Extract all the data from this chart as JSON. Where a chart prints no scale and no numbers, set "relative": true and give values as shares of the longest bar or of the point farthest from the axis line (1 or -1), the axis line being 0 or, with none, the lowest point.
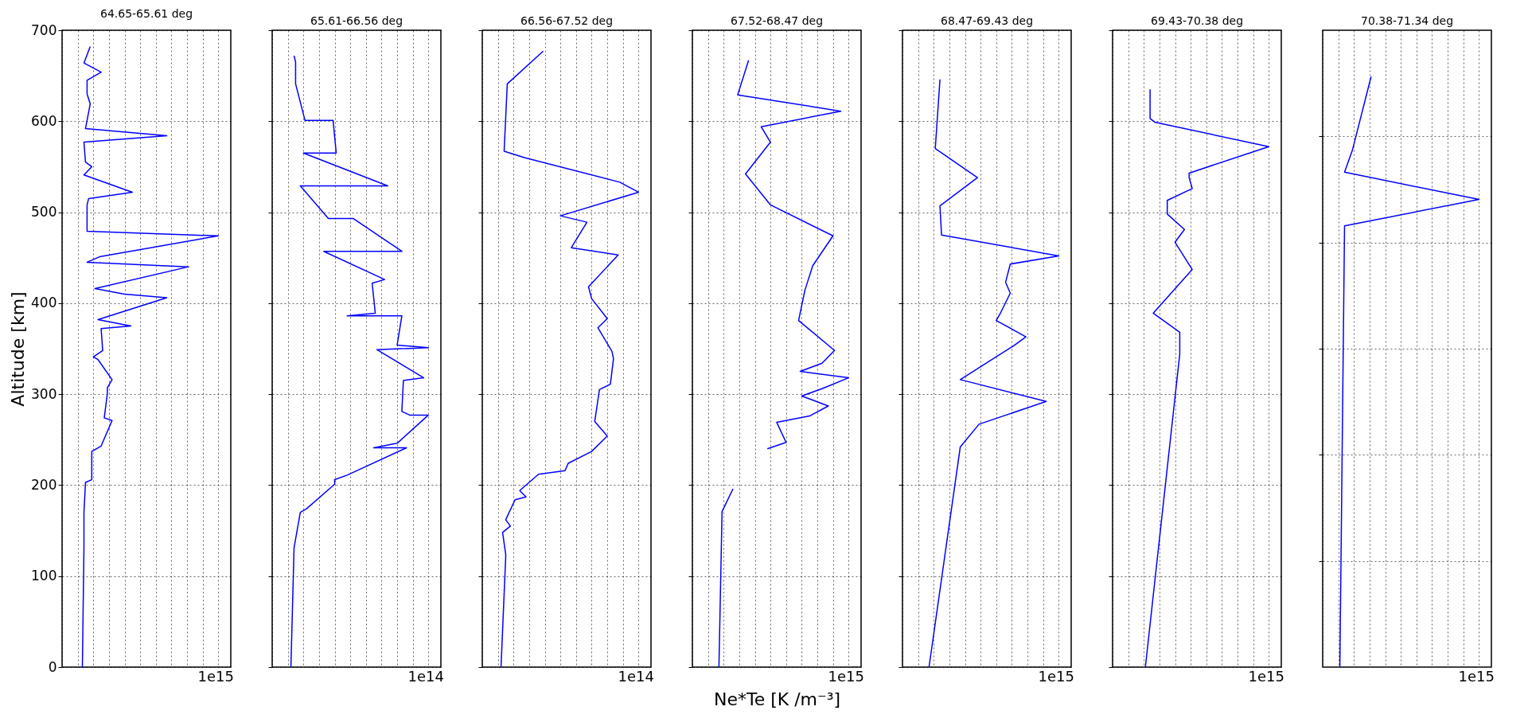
{
  "chart_data": [
    {
      "type": "line",
      "title": "64.65-65.61 deg",
      "ylabel": "Altitude [km]",
      "orientation": "horizontal",
      "relative": true,
      "ylim": [
        0,
        700
      ],
      "yticks": [
        0,
        100,
        200,
        300,
        400,
        500,
        600,
        700
      ],
      "grid": true,
      "tick_labels": "y",
      "line_style": "solid",
      "annotations": [
        "1e15"
      ],
      "series": [
        {
          "color": "#0000ff",
          "x": [
            682,
            664,
            654,
            645,
            630,
            619,
            592,
            584,
            577,
            555,
            550,
            541,
            522,
            515,
            508,
            479,
            474,
            451,
            445,
            440,
            416,
            410,
            406,
            382,
            375,
            372,
            348,
            341,
            338,
            316,
            307,
            301,
            274,
            271,
            243,
            237,
            206,
            203,
            170,
            131,
            0
          ],
          "values": [
            0.18,
            0.14,
            0.25,
            0.16,
            0.16,
            0.18,
            0.15,
            0.67,
            0.14,
            0.15,
            0.19,
            0.14,
            0.45,
            0.17,
            0.16,
            0.16,
            1.0,
            0.24,
            0.16,
            0.81,
            0.21,
            0.4,
            0.67,
            0.23,
            0.44,
            0.25,
            0.26,
            0.2,
            0.23,
            0.32,
            0.29,
            0.29,
            0.27,
            0.32,
            0.25,
            0.19,
            0.19,
            0.15,
            0.14,
            0.14,
            0.13
          ]
        }
      ]
    },
    {
      "type": "line",
      "title": "65.61-66.56 deg",
      "orientation": "horizontal",
      "relative": true,
      "ylim": [
        0,
        700
      ],
      "yticks": [
        0,
        100,
        200,
        300,
        400,
        500,
        600,
        700
      ],
      "grid": true,
      "tick_labels": false,
      "line_style": "solid",
      "annotations": [
        "1e14"
      ],
      "series": [
        {
          "color": "#0000ff",
          "x": [
            672,
            665,
            641,
            601,
            601,
            565,
            565,
            529,
            529,
            493,
            493,
            457,
            457,
            426,
            422,
            389,
            386,
            386,
            354,
            351,
            349,
            318,
            315,
            281,
            277,
            277,
            246,
            241,
            241,
            211,
            206,
            201,
            174,
            170,
            131,
            0
          ],
          "values": [
            0.14,
            0.15,
            0.15,
            0.21,
            0.39,
            0.41,
            0.2,
            0.74,
            0.18,
            0.36,
            0.52,
            0.83,
            0.33,
            0.72,
            0.64,
            0.66,
            0.48,
            0.83,
            0.8,
            1.0,
            0.67,
            0.97,
            0.84,
            0.83,
            0.88,
            1.0,
            0.8,
            0.65,
            0.86,
            0.48,
            0.4,
            0.4,
            0.22,
            0.18,
            0.14,
            0.12
          ]
        }
      ]
    },
    {
      "type": "line",
      "title": "66.56-67.52 deg",
      "orientation": "horizontal",
      "relative": true,
      "ylim": [
        0,
        700
      ],
      "yticks": [
        0,
        100,
        200,
        300,
        400,
        500,
        600,
        700
      ],
      "grid": true,
      "tick_labels": false,
      "line_style": "solid",
      "annotations": [
        "1e14"
      ],
      "series": [
        {
          "color": "#0000ff",
          "x": [
            677,
            641,
            567,
            560,
            533,
            522,
            496,
            489,
            461,
            453,
            418,
            405,
            383,
            373,
            347,
            339,
            311,
            305,
            270,
            254,
            237,
            224,
            216,
            212,
            194,
            187,
            184,
            162,
            155,
            148,
            124,
            121,
            0
          ],
          "values": [
            0.39,
            0.16,
            0.14,
            0.27,
            0.88,
            1.0,
            0.5,
            0.67,
            0.57,
            0.87,
            0.68,
            0.7,
            0.8,
            0.74,
            0.83,
            0.84,
            0.82,
            0.75,
            0.72,
            0.8,
            0.7,
            0.55,
            0.53,
            0.36,
            0.24,
            0.28,
            0.21,
            0.15,
            0.18,
            0.13,
            0.15,
            0.15,
            0.12
          ]
        }
      ]
    },
    {
      "type": "line",
      "title": "67.52-68.47 deg",
      "xlabel": "Ne*Te [K /m⁻³]",
      "orientation": "horizontal",
      "relative": true,
      "ylim": [
        0,
        700
      ],
      "yticks": [
        0,
        100,
        200,
        300,
        400,
        500,
        600,
        700
      ],
      "grid": true,
      "tick_labels": false,
      "line_style": "solid",
      "annotations": [
        "1e15"
      ],
      "series": [
        {
          "color": "#0000ff",
          "x": [
            667,
            629,
            611,
            594,
            577,
            542,
            508,
            474,
            441,
            414,
            381,
            348,
            334,
            325,
            318,
            306,
            298,
            287,
            276,
            269,
            247,
            240,
            220,
            196,
            171,
            0
          ],
          "values": [
            0.36,
            0.29,
            0.95,
            0.44,
            0.5,
            0.34,
            0.5,
            0.9,
            0.77,
            0.72,
            0.68,
            0.91,
            0.83,
            0.69,
            1.0,
            0.83,
            0.7,
            0.87,
            0.75,
            0.54,
            0.6,
            0.48,
            null,
            0.26,
            0.19,
            0.17
          ]
        }
      ]
    },
    {
      "type": "line",
      "title": "68.47-69.43 deg",
      "orientation": "horizontal",
      "relative": true,
      "ylim": [
        0,
        700
      ],
      "yticks": [
        0,
        100,
        200,
        300,
        400,
        500,
        600,
        700
      ],
      "grid": true,
      "tick_labels": false,
      "line_style": "solid",
      "annotations": [
        "1e15"
      ],
      "series": [
        {
          "color": "#0000ff",
          "x": [
            646,
            570,
            538,
            507,
            475,
            452,
            443,
            423,
            411,
            390,
            381,
            363,
            353,
            316,
            292,
            267,
            242,
            0
          ],
          "values": [
            0.24,
            0.21,
            0.48,
            0.24,
            0.25,
            1.0,
            0.69,
            0.66,
            0.69,
            0.63,
            0.6,
            0.79,
            0.71,
            0.37,
            0.92,
            0.49,
            0.37,
            0.17
          ]
        }
      ]
    },
    {
      "type": "line",
      "title": "69.43-70.38 deg",
      "orientation": "horizontal",
      "relative": true,
      "ylim": [
        0,
        700
      ],
      "yticks": [
        0,
        100,
        200,
        300,
        400,
        500,
        600,
        700
      ],
      "grid": true,
      "tick_labels": false,
      "line_style": "solid",
      "annotations": [
        "1e15"
      ],
      "series": [
        {
          "color": "#0000ff",
          "x": [
            635,
            603,
            599,
            572,
            543,
            538,
            526,
            513,
            498,
            481,
            467,
            437,
            389,
            368,
            344,
            0
          ],
          "values": [
            0.24,
            0.24,
            0.27,
            1.0,
            0.49,
            0.49,
            0.51,
            0.35,
            0.35,
            0.46,
            0.4,
            0.51,
            0.26,
            0.43,
            0.43,
            0.21
          ]
        }
      ]
    },
    {
      "type": "line",
      "title": "70.38-71.34 deg",
      "orientation": "horizontal",
      "relative": true,
      "ylim": [
        0,
        700
      ],
      "yticks": [
        {
          "value": 116.67,
          "label": null
        },
        {
          "value": 233.33,
          "label": null
        },
        {
          "value": 350,
          "label": null
        },
        {
          "value": 466.67,
          "label": null
        },
        {
          "value": 583.33,
          "label": null
        }
      ],
      "grid": true,
      "tick_labels": false,
      "line_style": "solid",
      "annotations": [
        "1e15"
      ],
      "series": [
        {
          "color": "#0000ff",
          "x": [
            649,
            568,
            544,
            514,
            485,
            0
          ],
          "values": [
            0.31,
            0.19,
            0.14,
            1.0,
            0.14,
            0.11
          ]
        }
      ]
    }
  ]
}
